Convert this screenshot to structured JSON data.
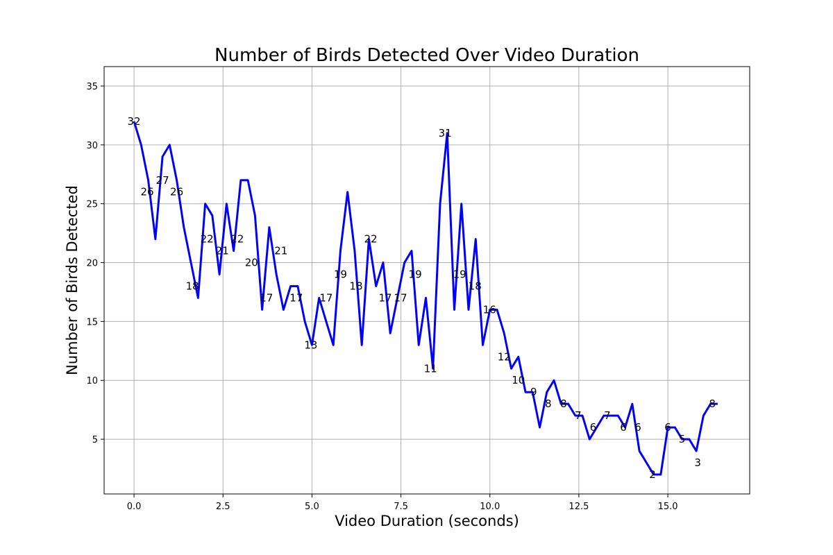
{
  "chart_data": {
    "type": "line",
    "title": "Number of Birds Detected Over Video Duration",
    "xlabel": "Video Duration (seconds)",
    "ylabel": "Number of Birds Detected",
    "color": "#0000ff",
    "grid": true,
    "xlim": [
      -0.84,
      17.3
    ],
    "ylim": [
      0.35,
      36.65
    ],
    "xticks": [
      {
        "value": 0,
        "label": "0.0"
      },
      2.5,
      {
        "value": 5,
        "label": "5.0"
      },
      7.5,
      {
        "value": 10,
        "label": "10.0"
      },
      12.5,
      {
        "value": 15,
        "label": "15.0"
      }
    ],
    "yticks": [
      5,
      10,
      15,
      20,
      25,
      30,
      35
    ],
    "x": [
      0.0,
      0.2,
      0.4,
      0.6,
      0.8,
      1.0,
      1.2,
      1.4,
      1.6,
      1.8,
      2.0,
      2.2,
      2.4,
      2.6,
      2.8,
      3.0,
      3.2,
      3.4,
      3.6,
      3.8,
      4.0,
      4.2,
      4.4,
      4.6,
      4.8,
      5.0,
      5.2,
      5.4,
      5.6,
      5.8,
      6.0,
      6.2,
      6.4,
      6.6,
      6.8,
      7.0,
      7.2,
      7.4,
      7.6,
      7.8,
      8.0,
      8.2,
      8.4,
      8.6,
      8.8,
      9.0,
      9.2,
      9.4,
      9.6,
      9.8,
      10.0,
      10.2,
      10.4,
      10.6,
      10.8,
      11.0,
      11.2,
      11.4,
      11.6,
      11.8,
      12.0,
      12.2,
      12.4,
      12.6,
      12.8,
      13.0,
      13.2,
      13.4,
      13.6,
      13.8,
      14.0,
      14.2,
      14.4,
      14.6,
      14.8,
      15.0,
      15.2,
      15.4,
      15.6,
      15.8,
      16.0,
      16.2,
      16.4
    ],
    "values": [
      32,
      30,
      27,
      22,
      29,
      30,
      27,
      23,
      20,
      17,
      25,
      24,
      19,
      25,
      21,
      27,
      27,
      24,
      16,
      23,
      19,
      16,
      18,
      18,
      15,
      13,
      17,
      15,
      13,
      21,
      26,
      21,
      13,
      22,
      18,
      20,
      14,
      17,
      20,
      21,
      13,
      17,
      11,
      25,
      31,
      16,
      25,
      16,
      22,
      13,
      16,
      16,
      14,
      11,
      12,
      9,
      9,
      6,
      9,
      10,
      8,
      8,
      7,
      7,
      5,
      6,
      7,
      7,
      7,
      6,
      8,
      4,
      3,
      2,
      2,
      6,
      6,
      5,
      5,
      4,
      7,
      8,
      8
    ],
    "annotations": [
      {
        "x": 0.0,
        "y": 32
      },
      {
        "x": 0.37,
        "y": 26
      },
      {
        "x": 0.8,
        "y": 27
      },
      {
        "x": 1.2,
        "y": 26
      },
      {
        "x": 1.64,
        "y": 18
      },
      {
        "x": 2.05,
        "y": 22
      },
      {
        "x": 2.48,
        "y": 21
      },
      {
        "x": 2.9,
        "y": 22
      },
      {
        "x": 3.3,
        "y": 20
      },
      {
        "x": 3.72,
        "y": 17
      },
      {
        "x": 4.13,
        "y": 21
      },
      {
        "x": 4.56,
        "y": 17
      },
      {
        "x": 4.97,
        "y": 13
      },
      {
        "x": 5.4,
        "y": 17
      },
      {
        "x": 5.8,
        "y": 19
      },
      {
        "x": 6.24,
        "y": 18
      },
      {
        "x": 6.65,
        "y": 22
      },
      {
        "x": 7.06,
        "y": 17
      },
      {
        "x": 7.49,
        "y": 17
      },
      {
        "x": 7.9,
        "y": 19
      },
      {
        "x": 8.33,
        "y": 11
      },
      {
        "x": 8.74,
        "y": 31
      },
      {
        "x": 9.15,
        "y": 19
      },
      {
        "x": 9.58,
        "y": 18
      },
      {
        "x": 9.99,
        "y": 16
      },
      {
        "x": 10.4,
        "y": 12
      },
      {
        "x": 10.8,
        "y": 10
      },
      {
        "x": 11.23,
        "y": 9
      },
      {
        "x": 11.64,
        "y": 8
      },
      {
        "x": 12.07,
        "y": 8
      },
      {
        "x": 12.48,
        "y": 7
      },
      {
        "x": 12.9,
        "y": 6
      },
      {
        "x": 13.3,
        "y": 7
      },
      {
        "x": 13.75,
        "y": 6
      },
      {
        "x": 14.16,
        "y": 6
      },
      {
        "x": 14.57,
        "y": 2
      },
      {
        "x": 15.0,
        "y": 6
      },
      {
        "x": 15.4,
        "y": 5
      },
      {
        "x": 15.84,
        "y": 3
      },
      {
        "x": 16.25,
        "y": 8
      }
    ]
  }
}
